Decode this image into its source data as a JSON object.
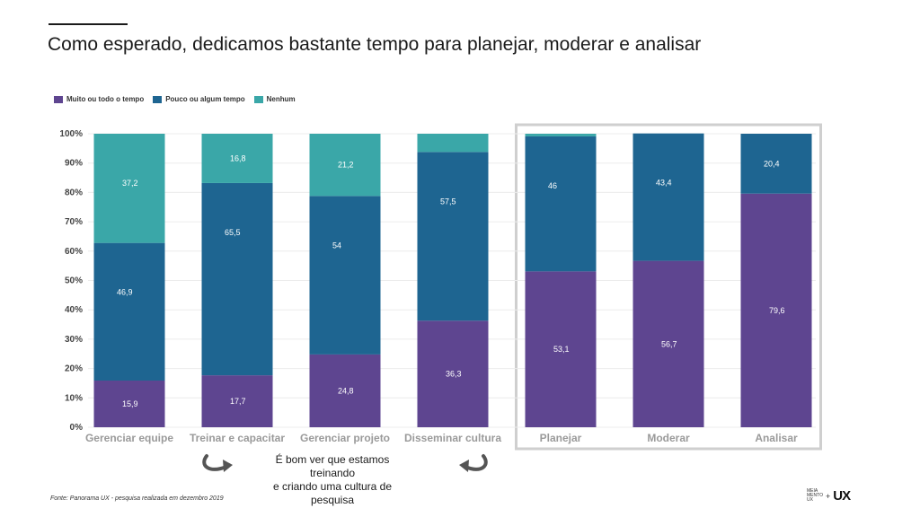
{
  "title": "Como esperado, dedicamos bastante tempo para planejar, moderar e analisar",
  "legend": [
    {
      "label": "Muito ou todo o tempo",
      "color": "#5e4590"
    },
    {
      "label": "Pouco ou algum tempo",
      "color": "#1e6591"
    },
    {
      "label": "Nenhum",
      "color": "#3aa7a8"
    }
  ],
  "caption_line1": "É bom ver que estamos treinando",
  "caption_line2": "e criando uma cultura de pesquisa",
  "source": "Fonte: Panorama UX - pesquisa realizada em dezembro 2019",
  "logo": {
    "mark_lines": [
      "MEIA",
      "MENTO",
      "UX"
    ],
    "plus": "+",
    "ux": "UX"
  },
  "chart_data": {
    "type": "bar",
    "stacked": true,
    "categories": [
      "Gerenciar equipe",
      "Treinar e capacitar",
      "Gerenciar projeto",
      "Disseminar cultura",
      "Planejar",
      "Moderar",
      "Analisar"
    ],
    "series": [
      {
        "name": "Muito ou todo o tempo",
        "color": "#5e4590",
        "values": [
          15.9,
          17.7,
          24.8,
          36.3,
          53.1,
          56.7,
          79.6
        ],
        "labels": [
          "15,9",
          "17,7",
          "24,8",
          "36,3",
          "53,1",
          "56,7",
          "79,6"
        ]
      },
      {
        "name": "Pouco ou algum tempo",
        "color": "#1e6591",
        "values": [
          46.9,
          65.5,
          54,
          57.5,
          46,
          43.4,
          20.4
        ],
        "labels": [
          "46,9",
          "65,5",
          "54",
          "57,5",
          "46",
          "43,4",
          "20,4"
        ]
      },
      {
        "name": "Nenhum",
        "color": "#3aa7a8",
        "values": [
          37.2,
          16.8,
          21.2,
          6.2,
          0.9,
          0,
          0
        ],
        "labels": [
          "37,2",
          "16,8",
          "21,2",
          "",
          "",
          "",
          ""
        ]
      }
    ],
    "yticks": [
      "0%",
      "10%",
      "20%",
      "30%",
      "40%",
      "50%",
      "60%",
      "70%",
      "80%",
      "90%",
      "100%"
    ],
    "ylim": [
      0,
      100
    ],
    "grid": true,
    "legend_position": "top-left",
    "highlight_categories": [
      "Planejar",
      "Moderar",
      "Analisar"
    ]
  }
}
